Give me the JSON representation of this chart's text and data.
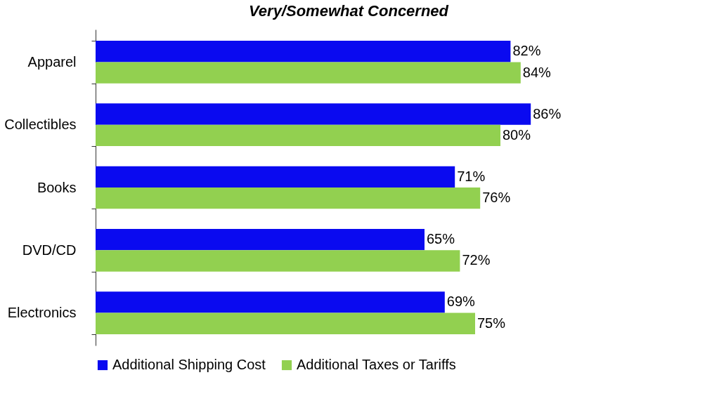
{
  "chart_data": {
    "type": "bar",
    "orientation": "horizontal",
    "title": "Very/Somewhat Concerned",
    "categories": [
      "Apparel",
      "Collectibles",
      "Books",
      "DVD/CD",
      "Electronics"
    ],
    "series": [
      {
        "name": "Additional Shipping Cost",
        "color": "#0a0af0",
        "values": [
          82,
          86,
          71,
          65,
          69
        ],
        "value_labels": [
          "82%",
          "86%",
          "71%",
          "65%",
          "69%"
        ]
      },
      {
        "name": "Additional Taxes or Tariffs",
        "color": "#92d050",
        "values": [
          84,
          80,
          76,
          72,
          75
        ],
        "value_labels": [
          "84%",
          "80%",
          "76%",
          "72%",
          "75%"
        ]
      }
    ],
    "legend": "bottom"
  }
}
